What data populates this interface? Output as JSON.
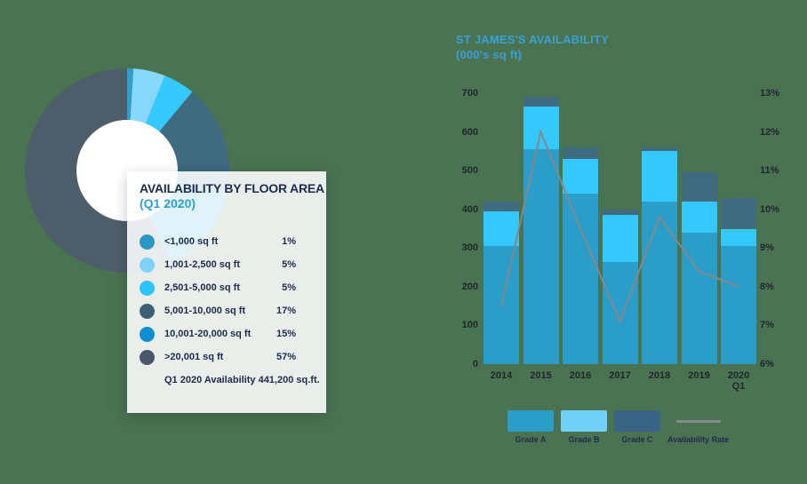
{
  "colors": {
    "background": "#4a7351",
    "navy": "#1d2b4e",
    "axis_text": "#20262e",
    "card_subtitle_blue": "#2da0d0",
    "bar_title_blue": "#3aa0d6",
    "rate_line": "#85888b"
  },
  "chart_data": [
    {
      "type": "pie",
      "style": "donut",
      "title": "AVAILABILITY BY FLOOR AREA",
      "subtitle": "(Q1 2020)",
      "categories": [
        "<1,000 sq ft",
        "1,001-2,500 sq ft",
        "2,501-5,000 sq ft",
        "5,001-10,000 sq ft",
        "10,001-20,000 sq ft",
        ">20,001 sq ft"
      ],
      "values": [
        1,
        5,
        5,
        17,
        15,
        57
      ],
      "value_labels": [
        "1%",
        "5%",
        "5%",
        "17%",
        "15%",
        "57%"
      ],
      "slice_colors": [
        "#2e9fc9",
        "#86d7fa",
        "#35c8fd",
        "#3f6a80",
        "#1090d2",
        "#4d5d69"
      ],
      "dot_colors": [
        "#2b97c4",
        "#7ed2f6",
        "#2fc3fb",
        "#3c6177",
        "#0f8fd0",
        "#47586a"
      ],
      "footnote": "Q1 2020 Availability 441,200 sq.ft.",
      "start_angle": "12 o'clock, clockwise"
    },
    {
      "type": "bar",
      "stacked": true,
      "title": "ST JAMES'S AVAILABILITY",
      "subtitle": "(000's sq ft)",
      "categories": [
        [
          "2014"
        ],
        [
          "2015"
        ],
        [
          "2016"
        ],
        [
          "2017"
        ],
        [
          "2018"
        ],
        [
          "2019"
        ],
        [
          "2020",
          "Q1"
        ]
      ],
      "series": [
        {
          "name": "Grade A",
          "color": "#2a9dc9",
          "values": [
            305,
            555,
            440,
            265,
            420,
            340,
            305
          ]
        },
        {
          "name": "Grade B",
          "color": "#35c8fd",
          "values": [
            90,
            110,
            90,
            120,
            130,
            80,
            45
          ]
        },
        {
          "name": "Grade C",
          "color": "#3f6a80",
          "values": [
            25,
            25,
            30,
            15,
            10,
            75,
            80
          ]
        }
      ],
      "line_series": {
        "name": "Availability Rate",
        "color": "#85888b",
        "values": [
          7.5,
          12.0,
          9.5,
          7.1,
          9.8,
          8.4,
          8.0
        ]
      },
      "left_axis": {
        "ticks": [
          0,
          100,
          200,
          300,
          400,
          500,
          600,
          700
        ],
        "min": 0,
        "max": 700
      },
      "right_axis": {
        "ticks": [
          "6%",
          "7%",
          "8%",
          "9%",
          "10%",
          "11%",
          "12%",
          "13%"
        ],
        "min": 6,
        "max": 13
      },
      "grid": false,
      "legend_position": "bottom",
      "legend": [
        {
          "label": "Grade A",
          "color": "#2a9dc9",
          "swatch": "rect"
        },
        {
          "label": "Grade B",
          "color": "#72d1f8",
          "swatch": "rect"
        },
        {
          "label": "Grade C",
          "color": "#3a6486",
          "swatch": "rect"
        },
        {
          "label": "Availability Rate",
          "color": "#85888b",
          "swatch": "line"
        }
      ]
    }
  ]
}
